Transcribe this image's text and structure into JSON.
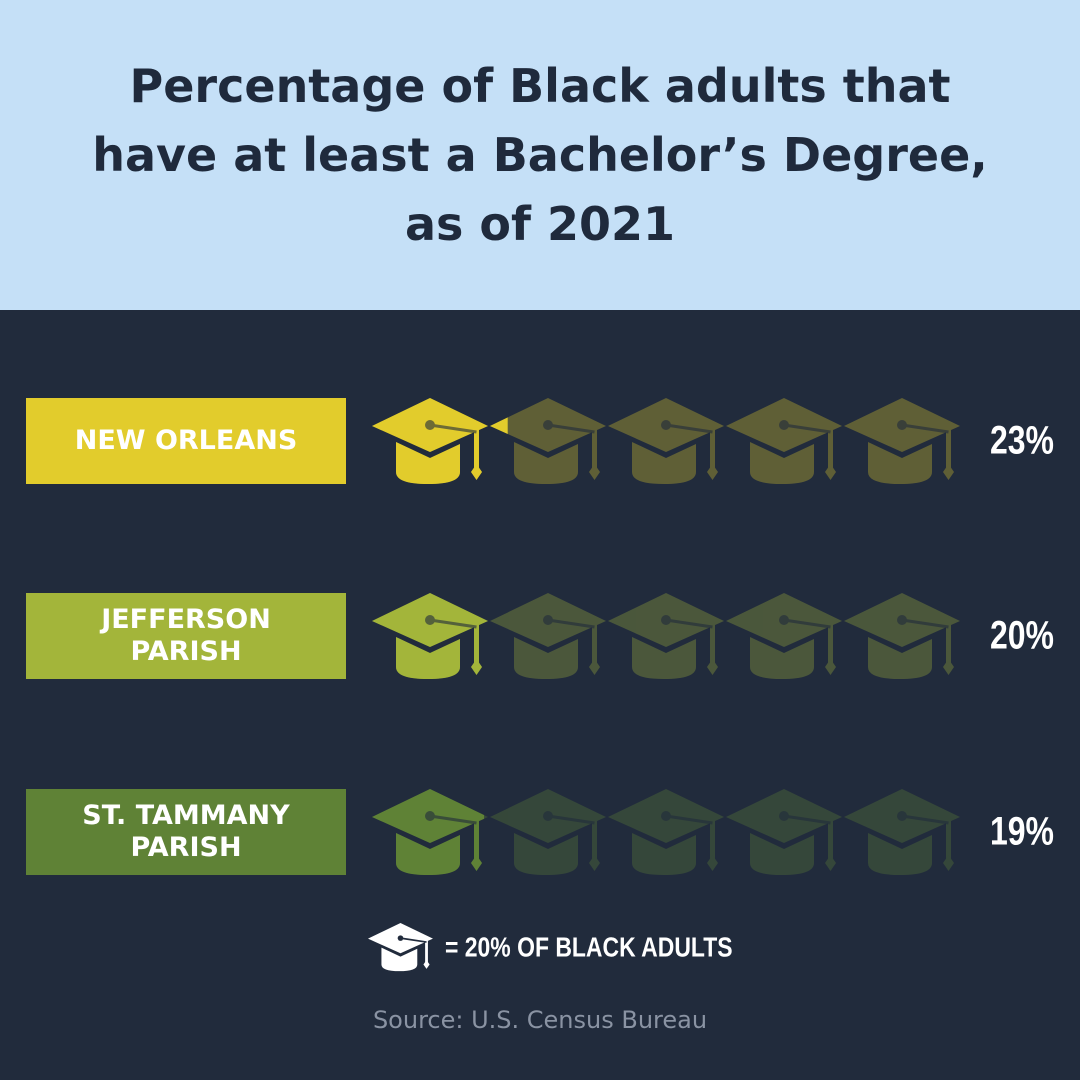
{
  "chart_data": {
    "type": "pictograph",
    "title": "Percentage of Black adults that have at least a Bachelor’s Degree, as of 2021",
    "categories": [
      "NEW ORLEANS",
      "JEFFERSON PARISH",
      "ST. TAMMANY PARISH"
    ],
    "values": [
      23,
      20,
      19
    ],
    "value_labels": [
      "23%",
      "20%",
      "19%"
    ],
    "colors": [
      "#e2cc2c",
      "#a3b53a",
      "#5f8236"
    ],
    "xlim": [
      0,
      100
    ],
    "icon_unit": 20,
    "legend": "= 20% OF BLACK ADULTS",
    "source": "Source: U.S. Census Bureau"
  }
}
